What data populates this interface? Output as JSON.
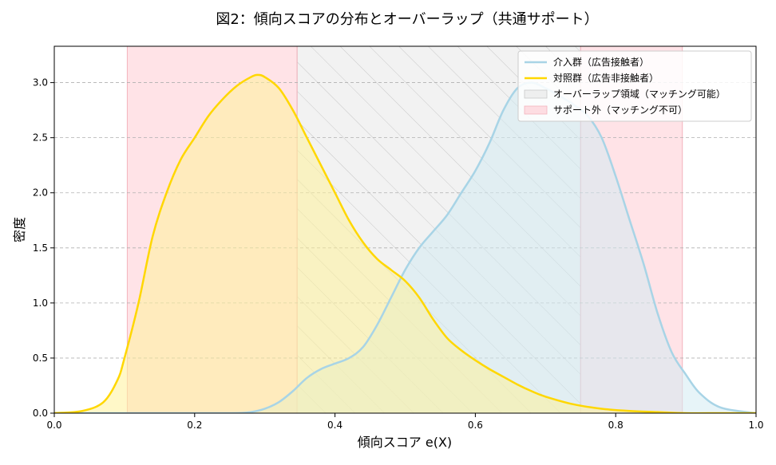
{
  "chart_data": {
    "type": "area",
    "title": "図2：傾向スコアの分布とオーバーラップ（共通サポート）",
    "xlabel": "傾向スコア e(X)",
    "ylabel": "密度",
    "xlim": [
      0.0,
      1.0
    ],
    "ylim": [
      0.0,
      3.33
    ],
    "xticks": [
      "0.0",
      "0.2",
      "0.4",
      "0.6",
      "0.8",
      "1.0"
    ],
    "yticks": [
      "0.0",
      "0.5",
      "1.0",
      "1.5",
      "2.0",
      "2.5",
      "3.0"
    ],
    "grid": "horizontal dashed",
    "legend_position": "top-right",
    "series": [
      {
        "name": "介入群（広告接触者）",
        "color": "#a8d4e6",
        "fill": "#d3ebf3",
        "x": [
          0.0,
          0.15,
          0.25,
          0.28,
          0.3,
          0.32,
          0.34,
          0.36,
          0.38,
          0.4,
          0.42,
          0.44,
          0.46,
          0.48,
          0.5,
          0.52,
          0.54,
          0.56,
          0.58,
          0.6,
          0.62,
          0.64,
          0.66,
          0.68,
          0.7,
          0.72,
          0.74,
          0.76,
          0.78,
          0.8,
          0.82,
          0.84,
          0.86,
          0.88,
          0.9,
          0.92,
          0.95,
          1.0
        ],
        "y": [
          0.0,
          0.0,
          0.0,
          0.01,
          0.04,
          0.1,
          0.2,
          0.32,
          0.4,
          0.45,
          0.5,
          0.6,
          0.8,
          1.05,
          1.3,
          1.5,
          1.65,
          1.8,
          2.0,
          2.2,
          2.45,
          2.75,
          2.95,
          3.0,
          2.95,
          2.88,
          2.8,
          2.7,
          2.5,
          2.15,
          1.75,
          1.35,
          0.9,
          0.55,
          0.35,
          0.18,
          0.05,
          0.0
        ]
      },
      {
        "name": "対照群（広告非接触者）",
        "color": "#ffd700",
        "fill": "#fff29a",
        "x": [
          0.0,
          0.04,
          0.07,
          0.09,
          0.1,
          0.12,
          0.14,
          0.16,
          0.18,
          0.2,
          0.22,
          0.24,
          0.26,
          0.28,
          0.29,
          0.3,
          0.32,
          0.34,
          0.36,
          0.38,
          0.4,
          0.42,
          0.44,
          0.46,
          0.48,
          0.5,
          0.52,
          0.54,
          0.56,
          0.58,
          0.6,
          0.62,
          0.64,
          0.66,
          0.68,
          0.7,
          0.74,
          0.78,
          0.82,
          0.86,
          0.9,
          0.95,
          1.0
        ],
        "y": [
          0.0,
          0.02,
          0.1,
          0.3,
          0.5,
          1.0,
          1.6,
          2.0,
          2.3,
          2.5,
          2.7,
          2.85,
          2.97,
          3.05,
          3.07,
          3.05,
          2.95,
          2.75,
          2.5,
          2.25,
          2.0,
          1.75,
          1.55,
          1.4,
          1.3,
          1.2,
          1.05,
          0.85,
          0.68,
          0.57,
          0.48,
          0.4,
          0.33,
          0.26,
          0.2,
          0.15,
          0.08,
          0.04,
          0.02,
          0.01,
          0.0,
          0.0,
          0.0
        ]
      }
    ],
    "regions": [
      {
        "name": "オーバーラップ領域（マッチング可能）",
        "x_range": [
          0.346,
          0.75
        ],
        "color": "#e6e6e6",
        "hatch": true
      },
      {
        "name": "サポート外（マッチング不可）",
        "x_range": [
          0.104,
          0.346
        ],
        "color": "#ffb6c1"
      },
      {
        "name": "サポート外（マッチング不可）",
        "x_range": [
          0.75,
          0.895
        ],
        "color": "#ffb6c1"
      }
    ]
  }
}
